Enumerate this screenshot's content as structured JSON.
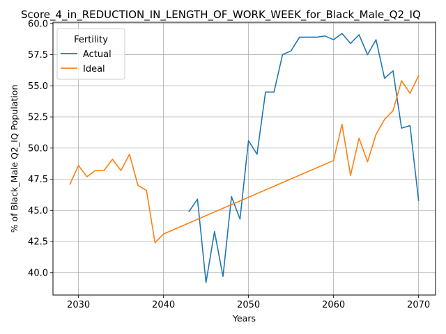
{
  "chart_data": {
    "type": "line",
    "title": "Score_4_in_REDUCTION_IN_LENGTH_OF_WORK_WEEK_for_Black_Male_Q2_IQ",
    "xlabel": "Years",
    "ylabel": "% of Black_Male Q2_IQ Population",
    "xlim": [
      2027,
      2072
    ],
    "ylim": [
      38.2,
      60.1
    ],
    "xticks": [
      2030,
      2040,
      2050,
      2060,
      2070
    ],
    "yticks": [
      40.0,
      42.5,
      45.0,
      47.5,
      50.0,
      52.5,
      55.0,
      57.5,
      60.0
    ],
    "grid": true,
    "legend": {
      "title": "Fertility",
      "placement": "top-left"
    },
    "series": [
      {
        "name": "Actual",
        "color": "#1f77b4",
        "x": [
          2043,
          2044,
          2045,
          2046,
          2047,
          2048,
          2049,
          2050,
          2051,
          2052,
          2053,
          2054,
          2055,
          2056,
          2057,
          2058,
          2059,
          2060,
          2061,
          2062,
          2063,
          2064,
          2065,
          2066,
          2067,
          2068,
          2069,
          2070
        ],
        "y": [
          44.9,
          45.9,
          39.2,
          43.3,
          39.7,
          46.1,
          44.3,
          50.6,
          49.5,
          54.5,
          54.5,
          57.5,
          57.8,
          58.9,
          58.9,
          58.9,
          59.0,
          58.7,
          59.2,
          58.4,
          59.1,
          57.5,
          58.7,
          55.6,
          56.2,
          51.6,
          51.8,
          45.8
        ]
      },
      {
        "name": "Ideal",
        "color": "#ff7f0e",
        "x": [
          2029,
          2030,
          2031,
          2032,
          2033,
          2034,
          2035,
          2036,
          2037,
          2038,
          2039,
          2040,
          2060,
          2061,
          2062,
          2063,
          2064,
          2065,
          2066,
          2067,
          2068,
          2069,
          2070
        ],
        "y": [
          47.1,
          48.6,
          47.7,
          48.2,
          48.2,
          49.1,
          48.2,
          49.5,
          47.0,
          46.6,
          42.4,
          43.1,
          49.0,
          51.9,
          47.8,
          50.8,
          48.9,
          51.1,
          52.3,
          53.0,
          55.4,
          54.4,
          55.8
        ]
      }
    ]
  }
}
